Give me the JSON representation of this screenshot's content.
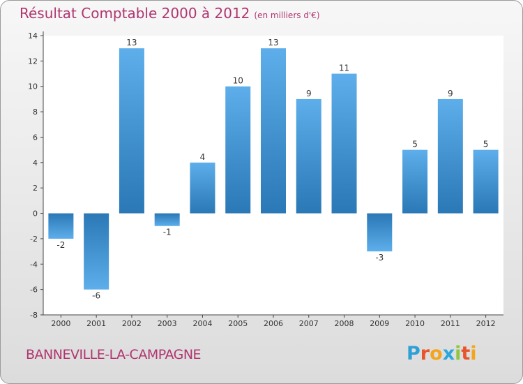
{
  "chart_data": {
    "type": "bar",
    "title": "Résultat Comptable 2000 à 2012",
    "subtitle": "(en milliers d'€)",
    "xlabel": "",
    "ylabel": "",
    "ylim": [
      -8,
      14
    ],
    "yticks": [
      -8,
      -6,
      -4,
      -2,
      0,
      2,
      4,
      6,
      8,
      10,
      12,
      14
    ],
    "grid": false,
    "categories": [
      "2000",
      "2001",
      "2002",
      "2003",
      "2004",
      "2005",
      "2006",
      "2007",
      "2008",
      "2009",
      "2010",
      "2011",
      "2012"
    ],
    "values": [
      -2,
      -6,
      13,
      -1,
      4,
      10,
      13,
      9,
      11,
      -3,
      5,
      9,
      5
    ]
  },
  "footer": {
    "city": "BANNEVILLE-LA-CAMPAGNE",
    "brand": "Proxiti"
  },
  "colors": {
    "title": "#b0356f",
    "bar_light": "#5daeea",
    "bar_dark": "#2a78b6",
    "brand_letters": [
      "#2f9fd6",
      "#e8552b",
      "#f4a51e",
      "#2aa8dc",
      "#8dc63f",
      "#e8552b",
      "#f4a51e"
    ]
  }
}
